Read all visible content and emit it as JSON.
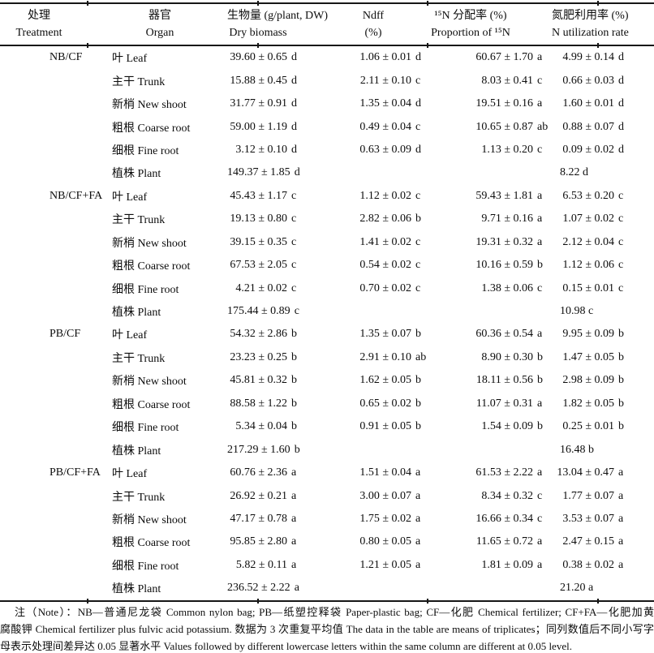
{
  "page": {
    "background": "#ffffff",
    "text_color": "#0d0d0d",
    "rule_color": "#161616"
  },
  "table": {
    "headers": [
      {
        "zh": "处理",
        "en": "Treatment"
      },
      {
        "zh": "器官",
        "en": "Organ"
      },
      {
        "zh": "生物量 (g/plant, DW)",
        "en": "Dry biomass"
      },
      {
        "zh": "Ndff",
        "en": "(%)"
      },
      {
        "zh": "¹⁵N 分配率 (%)",
        "en": "Proportion of ¹⁵N"
      },
      {
        "zh": "氮肥利用率 (%)",
        "en": "N utilization rate"
      }
    ],
    "groups": [
      {
        "treatment": "NB/CF",
        "rows": [
          {
            "organ": "叶 Leaf",
            "biomass": "39.60 ± 0.65",
            "biomass_sig": "d",
            "ndff": "1.06 ± 0.01",
            "ndff_sig": "d",
            "prop": "60.67 ± 1.70",
            "prop_sig": "a",
            "util": "4.99 ± 0.14",
            "util_sig": "d"
          },
          {
            "organ": "主干 Trunk",
            "biomass": "15.88 ± 0.45",
            "biomass_sig": "d",
            "ndff": "2.11 ± 0.10",
            "ndff_sig": "c",
            "prop": "8.03 ± 0.41",
            "prop_sig": "c",
            "util": "0.66 ± 0.03",
            "util_sig": "d"
          },
          {
            "organ": "新梢 New shoot",
            "biomass": "31.77 ± 0.91",
            "biomass_sig": "d",
            "ndff": "1.35 ± 0.04",
            "ndff_sig": "d",
            "prop": "19.51 ± 0.16",
            "prop_sig": "a",
            "util": "1.60 ± 0.01",
            "util_sig": "d"
          },
          {
            "organ": "粗根 Coarse root",
            "biomass": "59.00 ± 1.19",
            "biomass_sig": "d",
            "ndff": "0.49 ± 0.04",
            "ndff_sig": "c",
            "prop": "10.65 ± 0.87",
            "prop_sig": "ab",
            "util": "0.88 ± 0.07",
            "util_sig": "d"
          },
          {
            "organ": "细根 Fine root",
            "biomass": "3.12 ± 0.10",
            "biomass_sig": "d",
            "ndff": "0.63 ± 0.09",
            "ndff_sig": "d",
            "prop": "1.13 ± 0.20",
            "prop_sig": "c",
            "util": "0.09 ± 0.02",
            "util_sig": "d"
          },
          {
            "organ": "植株 Plant",
            "biomass": "149.37 ± 1.85",
            "biomass_sig": "d",
            "ndff": "",
            "ndff_sig": "",
            "prop": "",
            "prop_sig": "",
            "util": "8.22",
            "util_sig": "d",
            "total": true
          }
        ]
      },
      {
        "treatment": "NB/CF+FA",
        "rows": [
          {
            "organ": "叶 Leaf",
            "biomass": "45.43 ± 1.17",
            "biomass_sig": "c",
            "ndff": "1.12 ± 0.02",
            "ndff_sig": "c",
            "prop": "59.43 ± 1.81",
            "prop_sig": "a",
            "util": "6.53 ± 0.20",
            "util_sig": "c"
          },
          {
            "organ": "主干 Trunk",
            "biomass": "19.13 ± 0.80",
            "biomass_sig": "c",
            "ndff": "2.82 ± 0.06",
            "ndff_sig": "b",
            "prop": "9.71 ± 0.16",
            "prop_sig": "a",
            "util": "1.07 ± 0.02",
            "util_sig": "c"
          },
          {
            "organ": "新梢 New shoot",
            "biomass": "39.15 ± 0.35",
            "biomass_sig": "c",
            "ndff": "1.41 ± 0.02",
            "ndff_sig": "c",
            "prop": "19.31 ± 0.32",
            "prop_sig": "a",
            "util": "2.12 ± 0.04",
            "util_sig": "c"
          },
          {
            "organ": "粗根 Coarse root",
            "biomass": "67.53 ± 2.05",
            "biomass_sig": "c",
            "ndff": "0.54 ± 0.02",
            "ndff_sig": "c",
            "prop": "10.16 ± 0.59",
            "prop_sig": "b",
            "util": "1.12 ± 0.06",
            "util_sig": "c"
          },
          {
            "organ": "细根 Fine root",
            "biomass": "4.21 ± 0.02",
            "biomass_sig": "c",
            "ndff": "0.70 ± 0.02",
            "ndff_sig": "c",
            "prop": "1.38 ± 0.06",
            "prop_sig": "c",
            "util": "0.15 ± 0.01",
            "util_sig": "c"
          },
          {
            "organ": "植株 Plant",
            "biomass": "175.44 ± 0.89",
            "biomass_sig": "c",
            "ndff": "",
            "ndff_sig": "",
            "prop": "",
            "prop_sig": "",
            "util": "10.98",
            "util_sig": "c",
            "total": true
          }
        ]
      },
      {
        "treatment": "PB/CF",
        "rows": [
          {
            "organ": "叶 Leaf",
            "biomass": "54.32 ± 2.86",
            "biomass_sig": "b",
            "ndff": "1.35 ± 0.07",
            "ndff_sig": "b",
            "prop": "60.36 ± 0.54",
            "prop_sig": "a",
            "util": "9.95 ± 0.09",
            "util_sig": "b"
          },
          {
            "organ": "主干 Trunk",
            "biomass": "23.23 ± 0.25",
            "biomass_sig": "b",
            "ndff": "2.91 ± 0.10",
            "ndff_sig": "ab",
            "prop": "8.90 ± 0.30",
            "prop_sig": "b",
            "util": "1.47 ± 0.05",
            "util_sig": "b"
          },
          {
            "organ": "新梢 New shoot",
            "biomass": "45.81 ± 0.32",
            "biomass_sig": "b",
            "ndff": "1.62 ± 0.05",
            "ndff_sig": "b",
            "prop": "18.11 ± 0.56",
            "prop_sig": "b",
            "util": "2.98 ± 0.09",
            "util_sig": "b"
          },
          {
            "organ": "粗根 Coarse root",
            "biomass": "88.58 ± 1.22",
            "biomass_sig": "b",
            "ndff": "0.65 ± 0.02",
            "ndff_sig": "b",
            "prop": "11.07 ± 0.31",
            "prop_sig": "a",
            "util": "1.82 ± 0.05",
            "util_sig": "b"
          },
          {
            "organ": "细根 Fine root",
            "biomass": "5.34 ± 0.04",
            "biomass_sig": "b",
            "ndff": "0.91 ± 0.05",
            "ndff_sig": "b",
            "prop": "1.54 ± 0.09",
            "prop_sig": "b",
            "util": "0.25 ± 0.01",
            "util_sig": "b"
          },
          {
            "organ": "植株 Plant",
            "biomass": "217.29 ± 1.60",
            "biomass_sig": "b",
            "ndff": "",
            "ndff_sig": "",
            "prop": "",
            "prop_sig": "",
            "util": "16.48",
            "util_sig": "b",
            "total": true
          }
        ]
      },
      {
        "treatment": "PB/CF+FA",
        "rows": [
          {
            "organ": "叶 Leaf",
            "biomass": "60.76 ± 2.36",
            "biomass_sig": "a",
            "ndff": "1.51 ± 0.04",
            "ndff_sig": "a",
            "prop": "61.53 ± 2.22",
            "prop_sig": "a",
            "util": "13.04 ± 0.47",
            "util_sig": "a"
          },
          {
            "organ": "主干 Trunk",
            "biomass": "26.92 ± 0.21",
            "biomass_sig": "a",
            "ndff": "3.00 ± 0.07",
            "ndff_sig": "a",
            "prop": "8.34 ± 0.32",
            "prop_sig": "c",
            "util": "1.77 ± 0.07",
            "util_sig": "a"
          },
          {
            "organ": "新梢 New shoot",
            "biomass": "47.17 ± 0.78",
            "biomass_sig": "a",
            "ndff": "1.75 ± 0.02",
            "ndff_sig": "a",
            "prop": "16.66 ± 0.34",
            "prop_sig": "c",
            "util": "3.53 ± 0.07",
            "util_sig": "a"
          },
          {
            "organ": "粗根 Coarse root",
            "biomass": "95.85 ± 2.80",
            "biomass_sig": "a",
            "ndff": "0.80 ± 0.05",
            "ndff_sig": "a",
            "prop": "11.65 ± 0.72",
            "prop_sig": "a",
            "util": "2.47 ± 0.15",
            "util_sig": "a"
          },
          {
            "organ": "细根 Fine root",
            "biomass": "5.82 ± 0.11",
            "biomass_sig": "a",
            "ndff": "1.21 ± 0.05",
            "ndff_sig": "a",
            "prop": "1.81 ± 0.09",
            "prop_sig": "a",
            "util": "0.38 ± 0.02",
            "util_sig": "a"
          },
          {
            "organ": "植株 Plant",
            "biomass": "236.52 ± 2.22",
            "biomass_sig": "a",
            "ndff": "",
            "ndff_sig": "",
            "prop": "",
            "prop_sig": "",
            "util": "21.20",
            "util_sig": "a",
            "total": true
          }
        ]
      }
    ]
  },
  "note": {
    "lines": [
      "注（Note）：NB—普通尼龙袋 Common nylon bag; PB—纸塑控释袋 Paper-plastic bag; CF—化肥 Chemical fertilizer; CF+FA—化肥加黄",
      "腐酸钾 Chemical fertilizer plus fulvic acid potassium. 数据为 3 次重复平均值 The data in the table are means of triplicates；同列数值后不同小写字",
      "母表示处理间差异达 0.05 显著水平 Values followed by different lowercase letters within the same column are different at 0.05 level."
    ]
  }
}
